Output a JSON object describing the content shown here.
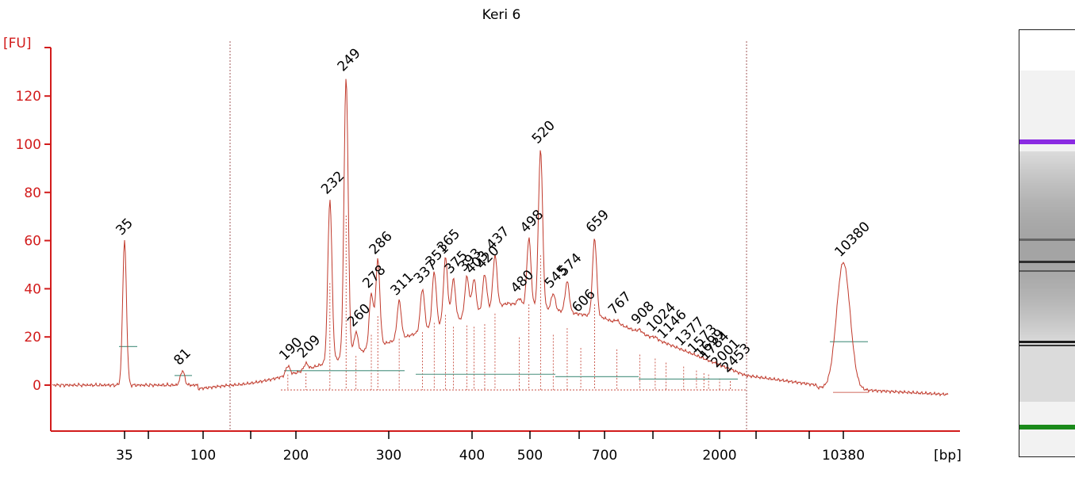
{
  "chart_data": {
    "type": "line",
    "title": "Keri 6",
    "ylabel": "[FU]",
    "xlabel": "[bp]",
    "ylim": [
      -18,
      140
    ],
    "y_ticks": [
      0,
      20,
      40,
      60,
      80,
      100,
      120
    ],
    "x_tick_labels": [
      "35",
      "100",
      "200",
      "300",
      "400",
      "500",
      "700",
      "2000",
      "10380"
    ],
    "x_tick_marks_bp": [
      35,
      50,
      100,
      150,
      200,
      300,
      400,
      500,
      600,
      700,
      1000,
      2000,
      4000,
      7000,
      10380
    ],
    "grid": false,
    "colors": {
      "trace": "#c0392b",
      "axis": "#d21c1c",
      "lower_marker": "#1a8a1a",
      "upper_marker": "#8a2be2",
      "baseline_segment": "#5c9c8c"
    },
    "series": [
      {
        "peaks": [
          {
            "label": "35",
            "bp": 35,
            "fu": 60,
            "marker": "lower"
          },
          {
            "label": "81",
            "bp": 81,
            "fu": 6
          },
          {
            "label": "190",
            "bp": 190,
            "fu": 8
          },
          {
            "label": "209",
            "bp": 209,
            "fu": 9
          },
          {
            "label": "232",
            "bp": 232,
            "fu": 77
          },
          {
            "label": "249",
            "bp": 249,
            "fu": 128
          },
          {
            "label": "260",
            "bp": 260,
            "fu": 22
          },
          {
            "label": "278",
            "bp": 278,
            "fu": 38
          },
          {
            "label": "286",
            "bp": 286,
            "fu": 52
          },
          {
            "label": "311",
            "bp": 311,
            "fu": 35
          },
          {
            "label": "337",
            "bp": 337,
            "fu": 40
          },
          {
            "label": "351",
            "bp": 351,
            "fu": 47
          },
          {
            "label": "365",
            "bp": 365,
            "fu": 53
          },
          {
            "label": "375",
            "bp": 375,
            "fu": 44
          },
          {
            "label": "393",
            "bp": 393,
            "fu": 45
          },
          {
            "label": "403",
            "bp": 403,
            "fu": 44
          },
          {
            "label": "420",
            "bp": 420,
            "fu": 46
          },
          {
            "label": "437",
            "bp": 437,
            "fu": 54
          },
          {
            "label": "480",
            "bp": 480,
            "fu": 36
          },
          {
            "label": "498",
            "bp": 498,
            "fu": 61
          },
          {
            "label": "520",
            "bp": 520,
            "fu": 98
          },
          {
            "label": "545",
            "bp": 545,
            "fu": 38
          },
          {
            "label": "574",
            "bp": 574,
            "fu": 43
          },
          {
            "label": "606",
            "bp": 606,
            "fu": 28
          },
          {
            "label": "659",
            "bp": 659,
            "fu": 61
          },
          {
            "label": "767",
            "bp": 767,
            "fu": 27
          },
          {
            "label": "908",
            "bp": 908,
            "fu": 23
          },
          {
            "label": "1024",
            "bp": 1024,
            "fu": 20
          },
          {
            "label": "1146",
            "bp": 1146,
            "fu": 17
          },
          {
            "label": "1377",
            "bp": 1377,
            "fu": 14
          },
          {
            "label": "1573",
            "bp": 1573,
            "fu": 11
          },
          {
            "label": "1699",
            "bp": 1699,
            "fu": 9
          },
          {
            "label": "1784",
            "bp": 1784,
            "fu": 8
          },
          {
            "label": "2001",
            "bp": 2001,
            "fu": 5
          },
          {
            "label": "2453",
            "bp": 2453,
            "fu": 3
          },
          {
            "label": "10380",
            "bp": 10380,
            "fu": 51,
            "marker": "upper"
          }
        ]
      }
    ]
  },
  "gel": {
    "upper_marker_color": "#8a2be2",
    "lower_marker_color": "#1a8a1a"
  }
}
